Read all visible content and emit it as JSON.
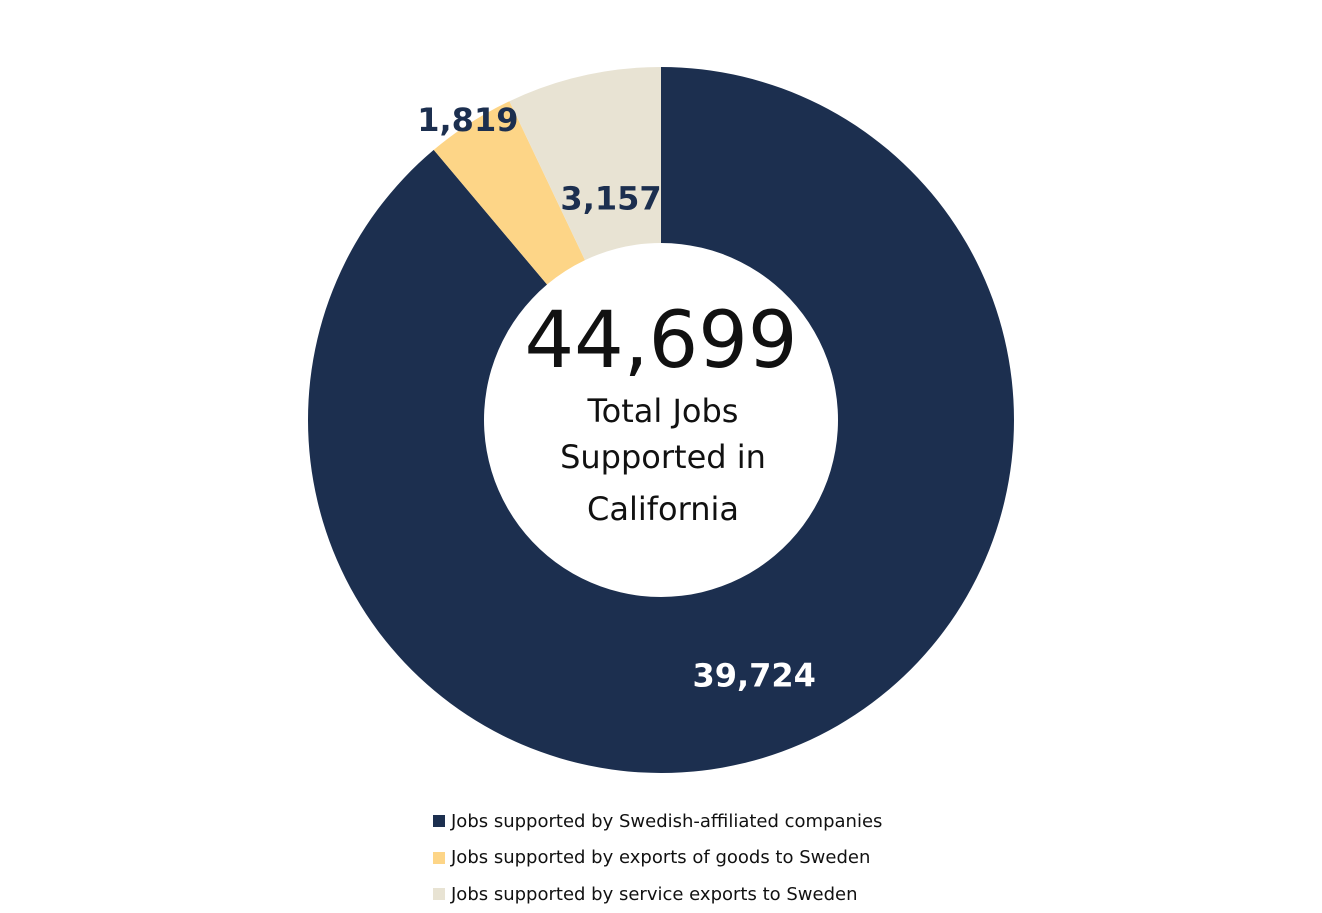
{
  "chart_data": {
    "type": "pie",
    "donut": true,
    "center_total": "44,699",
    "center_caption_lines": [
      "Total Jobs",
      "Supported in",
      "California"
    ],
    "series": [
      {
        "name": "Jobs supported by Swedish-affiliated companies",
        "value": 39724,
        "label": "39,724",
        "color": "#1c2f4f",
        "label_color": "#ffffff"
      },
      {
        "name": "Jobs supported by exports of goods to Sweden",
        "value": 1819,
        "label": "1,819",
        "color": "#fdd587",
        "label_color": "#1c2f4f"
      },
      {
        "name": "Jobs supported by service exports to Sweden",
        "value": 3157,
        "label": "3,157",
        "color": "#e8e3d3",
        "label_color": "#1c2f4f"
      }
    ],
    "legend_position": "bottom"
  }
}
